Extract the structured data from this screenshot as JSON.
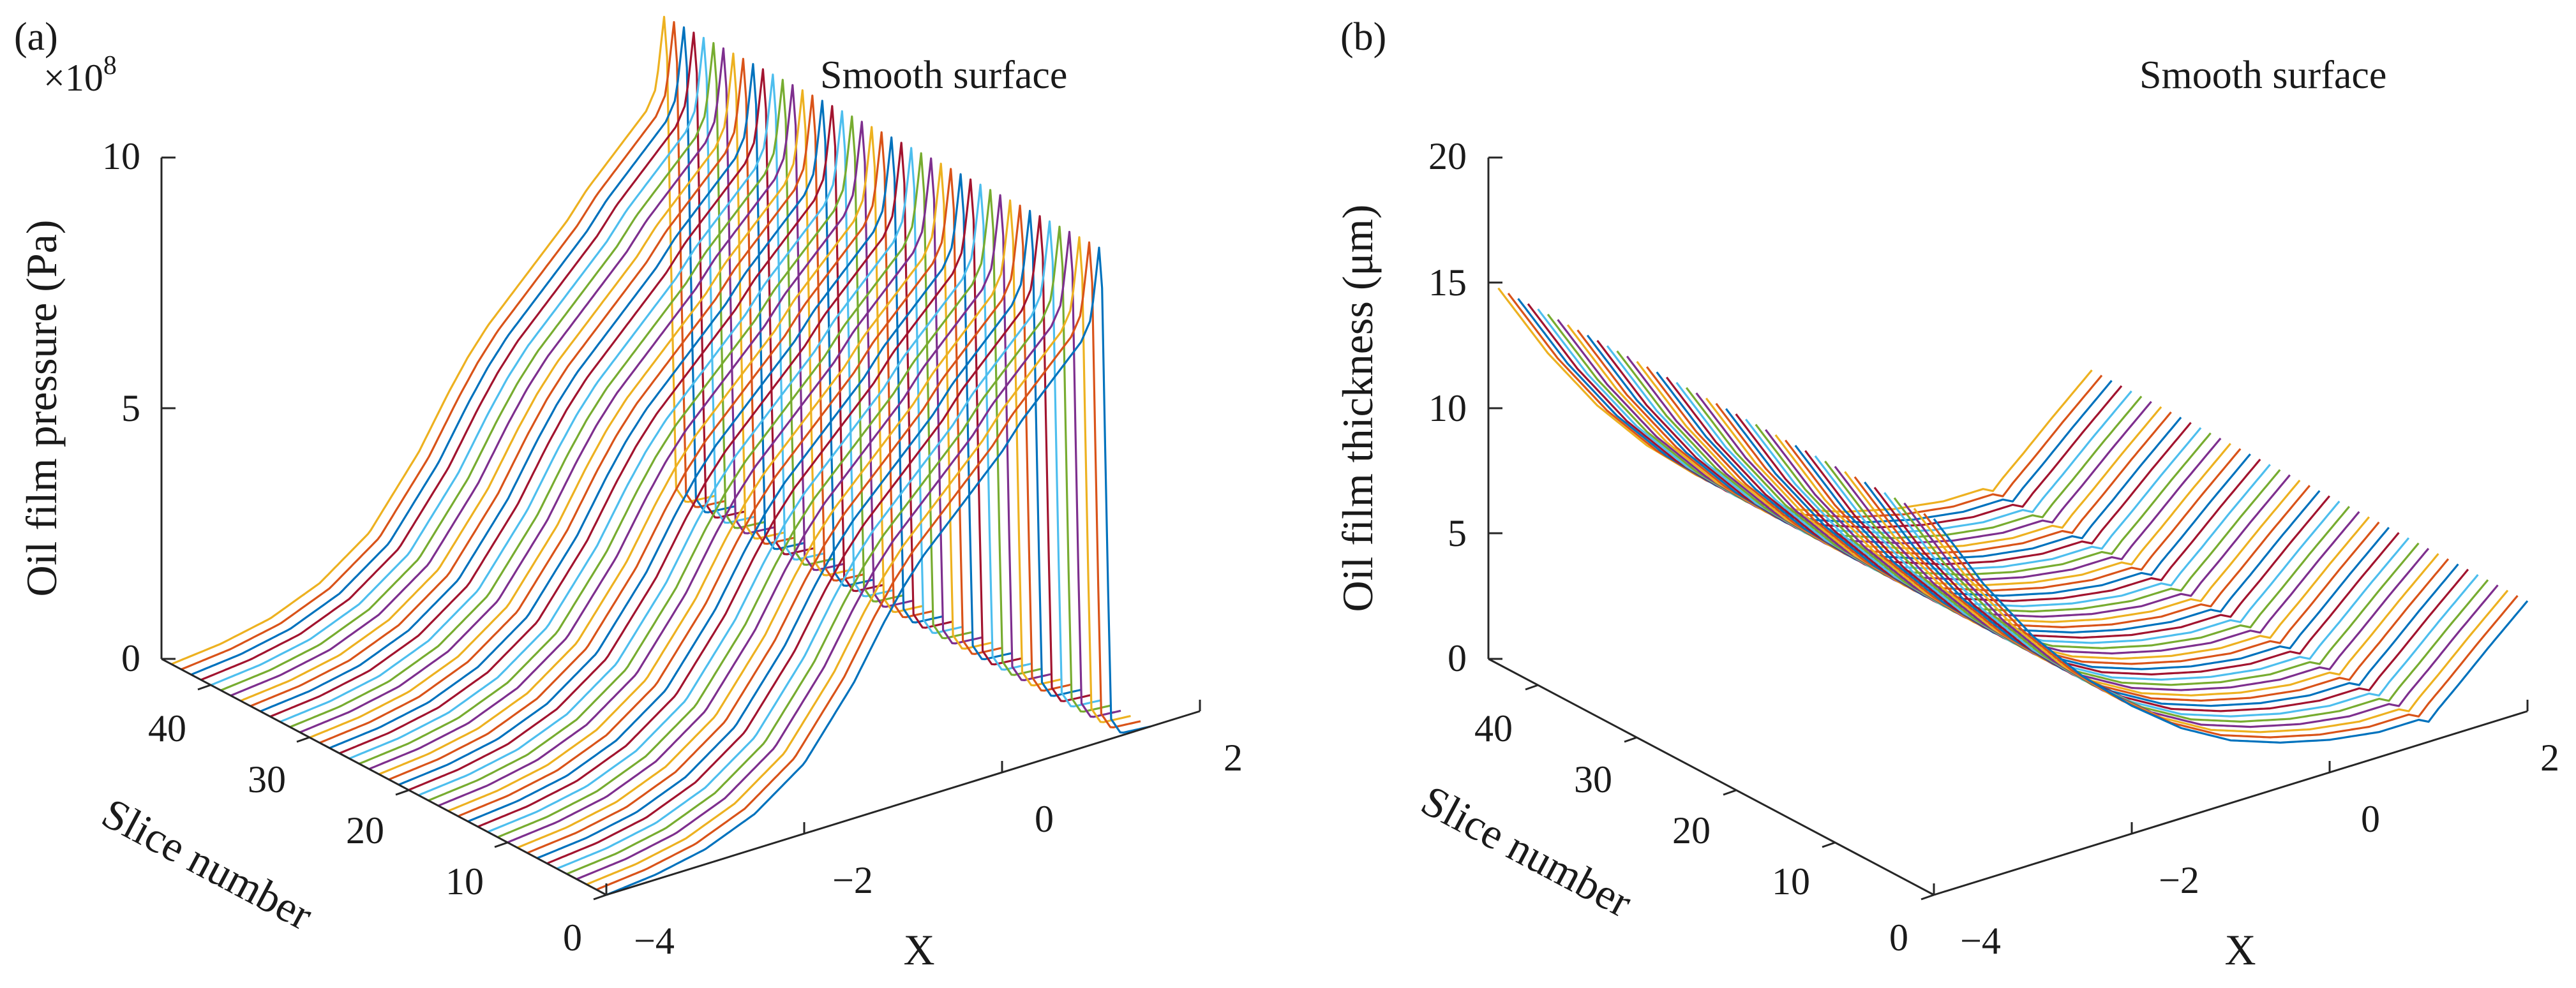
{
  "chart_data": [
    {
      "type": "line",
      "panel": "(a)",
      "annotation": "Smooth surface",
      "zlabel": "Oil film pressure (Pa)",
      "ylabel": "Slice number",
      "xlabel": "X",
      "z_exponent": "×10",
      "z_exponent_power": "8",
      "zlim": [
        0,
        10
      ],
      "zticks": [
        "0",
        "5",
        "10"
      ],
      "ylim": [
        0,
        45
      ],
      "yticks": [
        "0",
        "10",
        "20",
        "30",
        "40"
      ],
      "xlim": [
        -4,
        2
      ],
      "xticks": [
        "−4",
        "−2",
        "0",
        "2"
      ],
      "slices": 45,
      "series_profile": {
        "description": "Hertzian-type pressure profile per slice, values in units of 1e8 Pa",
        "x": [
          -4.0,
          -3.5,
          -3.0,
          -2.5,
          -2.0,
          -1.5,
          -1.2,
          -1.0,
          -0.8,
          -0.6,
          -0.4,
          -0.2,
          0.0,
          0.2,
          0.4,
          0.6,
          0.8,
          0.9,
          1.0,
          1.05,
          1.1,
          1.2,
          1.5
        ],
        "z": [
          0.0,
          0.1,
          0.3,
          0.7,
          1.4,
          2.7,
          3.7,
          4.3,
          4.8,
          5.2,
          5.6,
          6.0,
          6.4,
          6.9,
          7.3,
          7.7,
          8.1,
          8.5,
          10.2,
          5.0,
          0.4,
          0.05,
          0.0
        ]
      },
      "colors": [
        "#0072bd",
        "#d95319",
        "#edb120",
        "#7e2f8e",
        "#77ac30",
        "#4dbeee",
        "#a2142f"
      ]
    },
    {
      "type": "line",
      "panel": "(b)",
      "annotation": "Smooth surface",
      "zlabel": "Oil film thickness (μm)",
      "ylabel": "Slice number",
      "xlabel": "X",
      "zlim": [
        0,
        20
      ],
      "zticks": [
        "0",
        "5",
        "10",
        "15",
        "20"
      ],
      "ylim": [
        0,
        45
      ],
      "yticks": [
        "0",
        "10",
        "20",
        "30",
        "40"
      ],
      "xlim": [
        -4,
        2
      ],
      "xticks": [
        "−4",
        "−2",
        "0",
        "2"
      ],
      "slices": 45,
      "series_profile": {
        "description": "Film thickness profile per slice, values in micrometres",
        "x": [
          -4.0,
          -3.5,
          -3.0,
          -2.5,
          -2.0,
          -1.5,
          -1.0,
          -0.5,
          0.0,
          0.5,
          0.9,
          1.0,
          1.1,
          1.3,
          1.6,
          2.0
        ],
        "z": [
          15.0,
          11.8,
          9.1,
          6.9,
          5.1,
          3.6,
          2.5,
          1.8,
          1.3,
          1.0,
          1.0,
          0.8,
          1.2,
          1.9,
          3.0,
          4.4
        ]
      },
      "colors": [
        "#0072bd",
        "#d95319",
        "#edb120",
        "#7e2f8e",
        "#77ac30",
        "#4dbeee",
        "#a2142f"
      ]
    }
  ]
}
